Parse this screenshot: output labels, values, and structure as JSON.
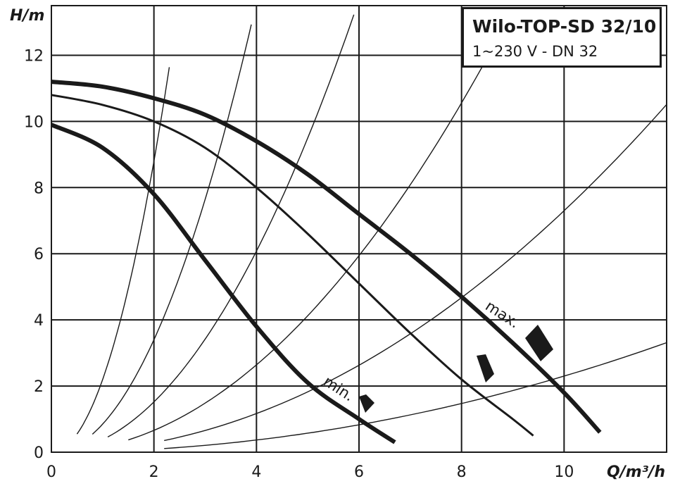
{
  "chart_data": {
    "type": "line",
    "title": "Wilo-TOP-SD 32/10",
    "subtitle": "1~230 V - DN 32",
    "xlabel": "Q/m³/h",
    "ylabel": "H/m",
    "xlim": [
      0,
      12
    ],
    "ylim": [
      0,
      13.5
    ],
    "xticks": [
      "0",
      "2",
      "4",
      "6",
      "8",
      "10"
    ],
    "yticks": [
      "0",
      "2",
      "4",
      "6",
      "8",
      "10",
      "12"
    ],
    "grid": true,
    "colors": {
      "curve": "#1a1a1a",
      "grid": "#1a1a1a",
      "background": "#ffffff"
    },
    "series": [
      {
        "name": "max.",
        "x": [
          0,
          1,
          2,
          3,
          4,
          5,
          6,
          7,
          8,
          9,
          10,
          10.7
        ],
        "y": [
          11.2,
          11.05,
          10.7,
          10.2,
          9.4,
          8.4,
          7.2,
          6.0,
          4.7,
          3.3,
          1.8,
          0.6
        ]
      },
      {
        "name": "",
        "x": [
          0,
          1,
          2,
          3,
          4,
          5,
          6,
          7,
          8,
          9,
          9.4
        ],
        "y": [
          10.8,
          10.5,
          10.0,
          9.2,
          8.0,
          6.6,
          5.1,
          3.6,
          2.2,
          1.0,
          0.5
        ]
      },
      {
        "name": "min.",
        "x": [
          0,
          1,
          2,
          3,
          4,
          5,
          6,
          6.7
        ],
        "y": [
          9.9,
          9.2,
          7.8,
          5.8,
          3.8,
          2.1,
          1.0,
          0.3
        ]
      }
    ],
    "system_curves": [
      {
        "k": 2.2,
        "xmin": 0.5,
        "xmax": 2.3
      },
      {
        "k": 0.85,
        "xmin": 0.8,
        "xmax": 3.9
      },
      {
        "k": 0.38,
        "xmin": 1.1,
        "xmax": 5.9
      },
      {
        "k": 0.165,
        "xmin": 1.5,
        "xmax": 8.9
      },
      {
        "k": 0.073,
        "xmin": 2.2,
        "xmax": 12
      },
      {
        "k": 0.023,
        "xmin": 2.2,
        "xmax": 12
      }
    ],
    "annotations": [
      "max.",
      "min."
    ]
  }
}
